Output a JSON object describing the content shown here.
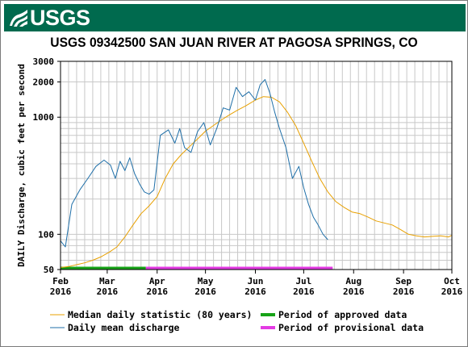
{
  "brand": {
    "logo_text": "USGS",
    "color": "#006a4e"
  },
  "chart_data": {
    "type": "line",
    "title": "USGS 09342500 SAN JUAN RIVER AT PAGOSA SPRINGS, CO",
    "ylabel": "DAILY Discharge, cubic feet per second",
    "xlabel": "",
    "y_scale": "log",
    "ylim": [
      50,
      3000
    ],
    "y_ticks": [
      50,
      100,
      1000,
      2000,
      3000
    ],
    "y_tick_labels": [
      "50",
      "100",
      "1000",
      "2000",
      "3000"
    ],
    "xlim": [
      "2016-02-01",
      "2016-10-01"
    ],
    "x_ticks": [
      {
        "date": "2016-02-01",
        "month": "Feb",
        "year": "2016"
      },
      {
        "date": "2016-03-01",
        "month": "Mar",
        "year": "2016"
      },
      {
        "date": "2016-04-01",
        "month": "Apr",
        "year": "2016"
      },
      {
        "date": "2016-05-01",
        "month": "May",
        "year": "2016"
      },
      {
        "date": "2016-06-01",
        "month": "Jun",
        "year": "2016"
      },
      {
        "date": "2016-07-01",
        "month": "Jul",
        "year": "2016"
      },
      {
        "date": "2016-08-01",
        "month": "Aug",
        "year": "2016"
      },
      {
        "date": "2016-09-01",
        "month": "Sep",
        "year": "2016"
      },
      {
        "date": "2016-10-01",
        "month": "Oct",
        "year": "2016"
      }
    ],
    "grid": true,
    "series": [
      {
        "name": "Median daily statistic (80 years)",
        "color": "#e8a000",
        "x": [
          "2016-02-01",
          "2016-02-06",
          "2016-02-11",
          "2016-02-16",
          "2016-02-21",
          "2016-02-26",
          "2016-03-02",
          "2016-03-07",
          "2016-03-12",
          "2016-03-17",
          "2016-03-22",
          "2016-03-27",
          "2016-04-01",
          "2016-04-06",
          "2016-04-11",
          "2016-04-16",
          "2016-04-21",
          "2016-04-26",
          "2016-05-01",
          "2016-05-06",
          "2016-05-11",
          "2016-05-16",
          "2016-05-21",
          "2016-05-26",
          "2016-06-01",
          "2016-06-06",
          "2016-06-11",
          "2016-06-16",
          "2016-06-21",
          "2016-06-26",
          "2016-07-01",
          "2016-07-06",
          "2016-07-11",
          "2016-07-16",
          "2016-07-21",
          "2016-07-26",
          "2016-07-31",
          "2016-08-05",
          "2016-08-10",
          "2016-08-15",
          "2016-08-20",
          "2016-08-25",
          "2016-08-30",
          "2016-09-04",
          "2016-09-09",
          "2016-09-14",
          "2016-09-19",
          "2016-09-24",
          "2016-09-29",
          "2016-10-01"
        ],
        "values": [
          52,
          53,
          55,
          57,
          60,
          64,
          70,
          78,
          95,
          120,
          150,
          175,
          210,
          300,
          400,
          480,
          560,
          650,
          760,
          850,
          950,
          1050,
          1150,
          1250,
          1400,
          1500,
          1480,
          1350,
          1100,
          850,
          600,
          420,
          300,
          230,
          190,
          170,
          155,
          150,
          140,
          130,
          125,
          120,
          110,
          100,
          97,
          95,
          96,
          97,
          95,
          98
        ]
      },
      {
        "name": "Daily mean discharge",
        "color": "#1f6fa8",
        "x": [
          "2016-02-01",
          "2016-02-04",
          "2016-02-08",
          "2016-02-13",
          "2016-02-18",
          "2016-02-23",
          "2016-02-28",
          "2016-03-03",
          "2016-03-06",
          "2016-03-09",
          "2016-03-12",
          "2016-03-15",
          "2016-03-18",
          "2016-03-21",
          "2016-03-24",
          "2016-03-27",
          "2016-03-30",
          "2016-04-03",
          "2016-04-08",
          "2016-04-12",
          "2016-04-15",
          "2016-04-18",
          "2016-04-22",
          "2016-04-26",
          "2016-04-30",
          "2016-05-04",
          "2016-05-08",
          "2016-05-12",
          "2016-05-16",
          "2016-05-20",
          "2016-05-24",
          "2016-05-28",
          "2016-06-01",
          "2016-06-04",
          "2016-06-07",
          "2016-06-10",
          "2016-06-13",
          "2016-06-16",
          "2016-06-20",
          "2016-06-24",
          "2016-06-28",
          "2016-07-01",
          "2016-07-04",
          "2016-07-07",
          "2016-07-10",
          "2016-07-13",
          "2016-07-16"
        ],
        "values": [
          88,
          78,
          180,
          240,
          300,
          380,
          430,
          390,
          300,
          420,
          350,
          450,
          330,
          270,
          230,
          220,
          240,
          700,
          780,
          600,
          800,
          550,
          500,
          750,
          900,
          580,
          800,
          1200,
          1150,
          1800,
          1500,
          1650,
          1400,
          1900,
          2100,
          1600,
          1100,
          800,
          550,
          300,
          380,
          250,
          180,
          140,
          120,
          100,
          90
        ]
      }
    ],
    "periods": [
      {
        "name": "Period of approved data",
        "color": "#17a317",
        "start": "2016-02-01",
        "end": "2016-03-25"
      },
      {
        "name": "Period of provisional data",
        "color": "#e33be3",
        "start": "2016-03-25",
        "end": "2016-07-19"
      }
    ]
  }
}
